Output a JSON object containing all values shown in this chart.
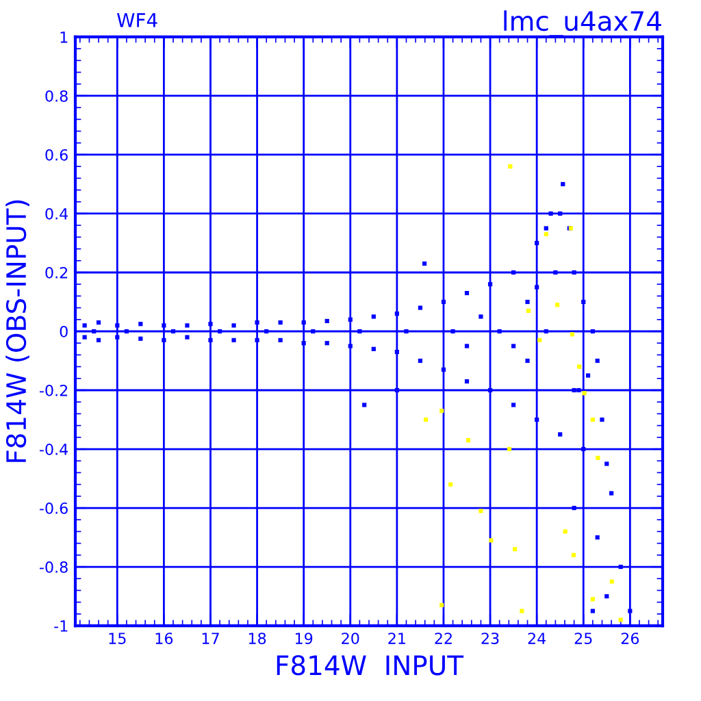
{
  "chart_data": {
    "type": "scatter",
    "title": "lmc_u4ax74",
    "xlabel": "F814W  INPUT",
    "ylabel": "F814W (OBS-INPUT)",
    "annotations": [
      "WF4"
    ],
    "xlim": [
      14.1,
      26.7
    ],
    "xticks": [
      15,
      16,
      17,
      18,
      19,
      20,
      21,
      22,
      23,
      24,
      25,
      26
    ],
    "ylim": [
      -1,
      1
    ],
    "yticks": [
      -1,
      -0.8,
      -0.6,
      -0.4,
      -0.2,
      0,
      0.2,
      0.4,
      0.6,
      0.8,
      1
    ],
    "grid": true,
    "marker": "square",
    "legend": false,
    "series": [
      {
        "color": "#0000ff",
        "x": [
          14.3,
          14.3,
          14.6,
          14.6,
          15,
          15,
          15.5,
          15.5,
          16,
          16,
          16.5,
          16.5,
          17,
          17,
          17.5,
          17.5,
          18,
          18,
          18.5,
          18.5,
          19,
          19,
          19.5,
          19.5,
          20,
          20,
          20.5,
          20.5,
          21,
          21,
          21.5,
          21.5,
          22,
          22,
          22.5,
          22.5,
          23,
          23,
          23.5,
          23.5,
          24,
          24,
          24.2,
          24.3,
          24.5,
          24.7,
          24.8,
          25,
          25.2,
          25.3,
          25.4,
          25.5,
          25.6,
          25.8,
          26,
          25,
          24.5,
          24.8,
          25.3,
          25.5,
          25.2,
          21.59,
          24.56,
          14.5,
          15.2,
          16.2,
          17.2,
          18.2,
          19.2,
          20.2,
          21.2,
          22.2,
          23.2,
          24.2,
          24.8,
          23.8,
          22.8,
          23.8,
          24.4,
          24.9,
          25.1,
          24.0,
          23.5,
          22.5,
          20.3,
          21.0
        ],
        "values": [
          0.02,
          -0.02,
          0.03,
          -0.03,
          0.02,
          -0.02,
          0.025,
          -0.025,
          0.02,
          -0.03,
          0.02,
          -0.02,
          0.025,
          -0.03,
          0.02,
          -0.03,
          0.03,
          -0.03,
          0.03,
          -0.03,
          0.03,
          -0.04,
          0.035,
          -0.04,
          0.04,
          -0.05,
          0.05,
          -0.06,
          0.06,
          -0.07,
          0.08,
          -0.1,
          0.1,
          -0.13,
          0.13,
          -0.17,
          0.16,
          -0.2,
          0.2,
          -0.25,
          0.3,
          -0.3,
          0.35,
          0.4,
          0.4,
          0.35,
          0.2,
          0.1,
          0,
          -0.1,
          -0.3,
          -0.45,
          -0.55,
          -0.8,
          -0.95,
          -0.4,
          -0.35,
          -0.6,
          -0.7,
          -0.9,
          -0.95,
          0.23,
          0.5,
          0,
          0,
          0,
          0,
          0,
          0,
          0,
          0,
          0,
          0,
          0,
          -0.2,
          0.1,
          0.05,
          -0.1,
          0.2,
          -0.2,
          -0.15,
          0.15,
          -0.05,
          -0.05,
          -0.25,
          -0.2
        ]
      },
      {
        "color": "#ffff00",
        "x": [
          23.43,
          21.62,
          21.96,
          22.53,
          22.15,
          22.8,
          23.02,
          23.53,
          23.68,
          21.96,
          23.41,
          24.06,
          23.82,
          24.61,
          24.79,
          25.2,
          25.61,
          25.8,
          24.76,
          24.91,
          25.02,
          25.2,
          25.31,
          24.2,
          24.73,
          24.44
        ],
        "values": [
          0.56,
          -0.3,
          -0.27,
          -0.37,
          -0.52,
          -0.61,
          -0.71,
          -0.74,
          -0.95,
          -0.93,
          -0.4,
          -0.03,
          0.07,
          -0.68,
          -0.76,
          -0.91,
          -0.85,
          -0.98,
          -0.01,
          -0.12,
          -0.21,
          -0.3,
          -0.43,
          0.33,
          0.35,
          0.09
        ]
      }
    ]
  }
}
